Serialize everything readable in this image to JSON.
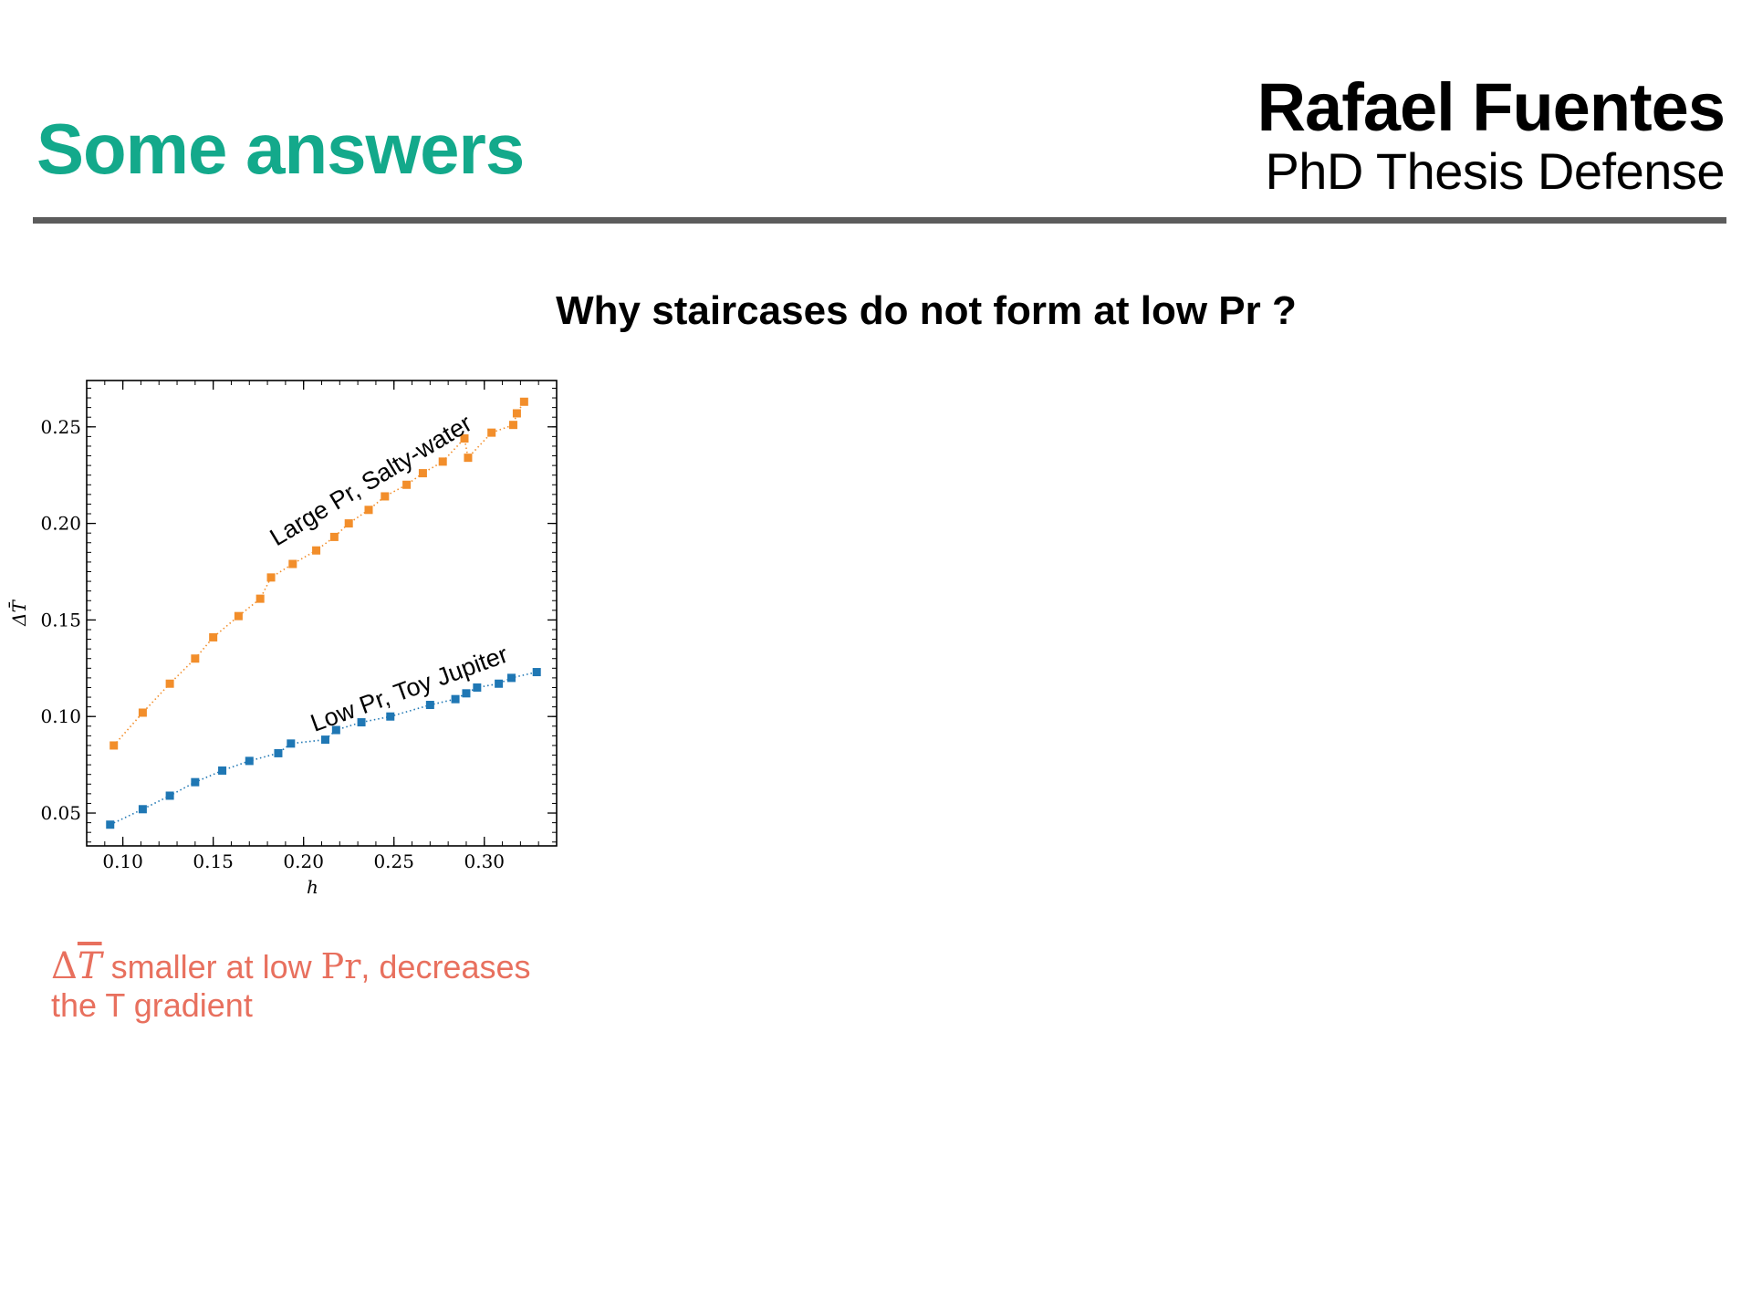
{
  "header": {
    "title": "Some answers",
    "author": "Rafael Fuentes",
    "subtitle": "PhD Thesis Defense"
  },
  "question": "Why staircases do not form at low Pr ?",
  "caption": {
    "delta": "Δ",
    "tvar": "T",
    "line1_rest": " smaller at low ",
    "pr": "Pr",
    "line1_end": ", decreases",
    "line2": "the T gradient"
  },
  "chart_data": {
    "type": "scatter",
    "xlabel": "h",
    "ylabel": "ΔT̄",
    "xlim": [
      0.08,
      0.34
    ],
    "ylim": [
      0.033,
      0.274
    ],
    "xticks": [
      0.1,
      0.15,
      0.2,
      0.25,
      0.3
    ],
    "yticks": [
      0.05,
      0.1,
      0.15,
      0.2,
      0.25
    ],
    "xtick_labels": [
      "0.10",
      "0.15",
      "0.20",
      "0.25",
      "0.30"
    ],
    "ytick_labels": [
      "0.05",
      "0.10",
      "0.15",
      "0.20",
      "0.25"
    ],
    "grid": false,
    "series": [
      {
        "name": "Large Pr, Salty-water",
        "color": "#f28e2b",
        "marker": "square",
        "line": "dotted",
        "x": [
          0.095,
          0.111,
          0.126,
          0.14,
          0.15,
          0.164,
          0.176,
          0.182,
          0.194,
          0.207,
          0.217,
          0.225,
          0.236,
          0.245,
          0.257,
          0.266,
          0.277,
          0.289,
          0.291,
          0.304,
          0.316,
          0.318,
          0.322
        ],
        "y": [
          0.085,
          0.102,
          0.117,
          0.13,
          0.141,
          0.152,
          0.161,
          0.172,
          0.179,
          0.186,
          0.193,
          0.2,
          0.207,
          0.214,
          0.22,
          0.226,
          0.232,
          0.244,
          0.234,
          0.247,
          0.251,
          0.257,
          0.263
        ]
      },
      {
        "name": "Low Pr, Toy Jupiter",
        "color": "#1f77b4",
        "marker": "square",
        "line": "dotted",
        "x": [
          0.093,
          0.111,
          0.126,
          0.14,
          0.155,
          0.17,
          0.186,
          0.193,
          0.212,
          0.218,
          0.232,
          0.248,
          0.27,
          0.284,
          0.29,
          0.296,
          0.308,
          0.315,
          0.329
        ],
        "y": [
          0.044,
          0.052,
          0.059,
          0.066,
          0.072,
          0.077,
          0.081,
          0.086,
          0.088,
          0.093,
          0.097,
          0.1,
          0.106,
          0.109,
          0.112,
          0.115,
          0.117,
          0.12,
          0.123
        ]
      }
    ]
  }
}
